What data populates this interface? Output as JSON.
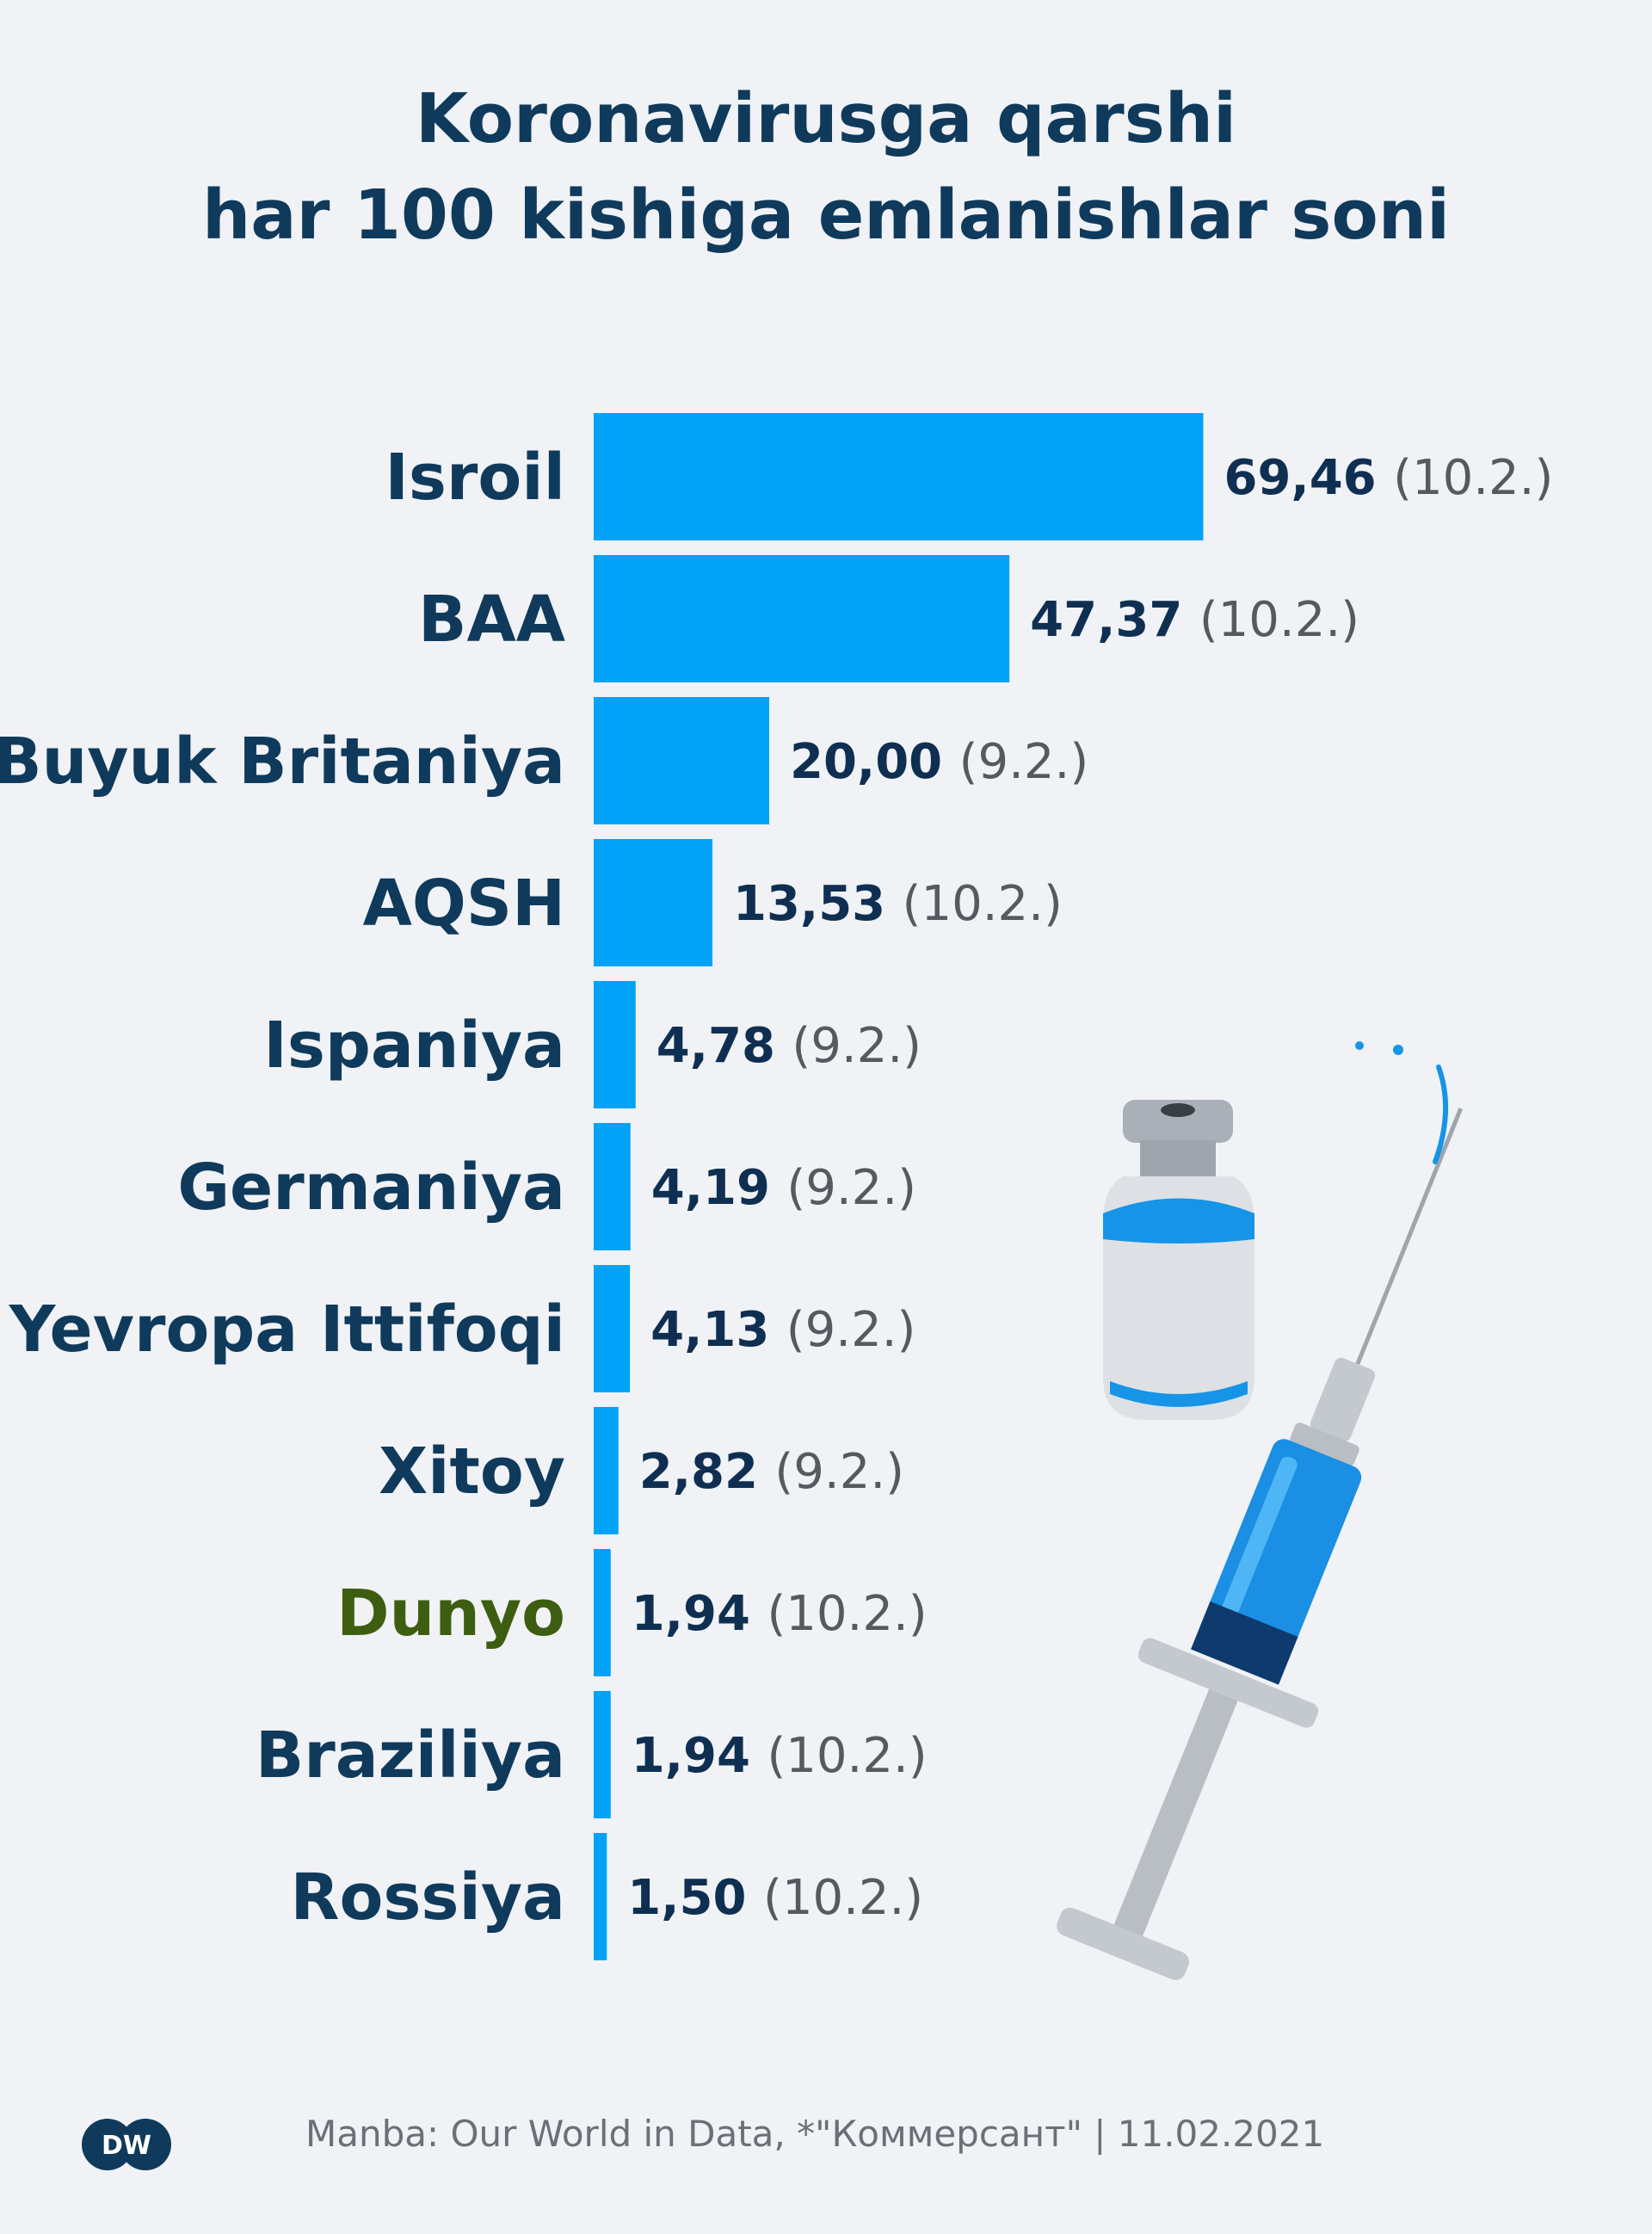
{
  "title": {
    "line1": "Koronavirusga qarshi",
    "line2": "har 100 kishiga emlanishlar soni"
  },
  "colors": {
    "bar": "#00a3f5",
    "label": "#0f3a5c",
    "highlight_label": "#3d5e10",
    "value": "#0f2f52",
    "date": "#555a60"
  },
  "chart_data": {
    "type": "bar",
    "orientation": "horizontal",
    "categories": [
      "Isroil",
      "BAA",
      "Buyuk Britaniya",
      "AQSH",
      "Ispaniya",
      "Germaniya",
      "Yevropa Ittifoqi",
      "Xitoy",
      "Dunyo",
      "Braziliya",
      "Rossiya"
    ],
    "values": [
      69.46,
      47.37,
      20.0,
      13.53,
      4.78,
      4.19,
      4.13,
      2.82,
      1.94,
      1.94,
      1.5
    ],
    "value_labels": [
      "69,46",
      "47,37",
      "20,00",
      "13,53",
      "4,78",
      "4,19",
      "4,13",
      "2,82",
      "1,94",
      "1,94",
      "1,50"
    ],
    "dates": [
      "(10.2.)",
      "(10.2.)",
      "(9.2.)",
      "(10.2.)",
      "(9.2.)",
      "(9.2.)",
      "(9.2.)",
      "(9.2.)",
      "(10.2.)",
      "(10.2.)",
      "(10.2.)"
    ],
    "highlight": [
      "Dunyo"
    ],
    "xlim": [
      0,
      70
    ]
  },
  "footer": {
    "source": "Manba:  Our World in Data, *\"Коммерсант\"  |  11.02.2021"
  },
  "logo": {
    "text": "DW"
  }
}
